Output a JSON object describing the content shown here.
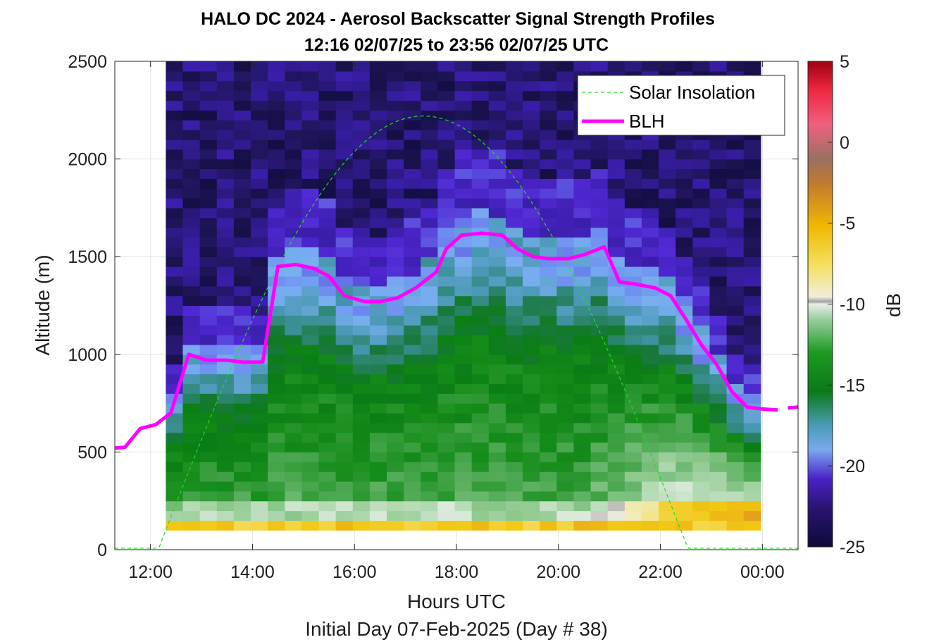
{
  "chart_data": {
    "type": "heatmap",
    "title": "HALO DC 2024 - Aerosol Backscatter Signal Strength Profiles",
    "subtitle": "12:16 02/07/25 to 23:56 02/07/25  UTC",
    "xlabel": "Hours UTC",
    "xlabel2": "Initial Day 07-Feb-2025 (Day # 38)",
    "ylabel": "Altitude (m)",
    "colorbar_label": "dB",
    "xlim_hours": [
      11.3,
      24.7
    ],
    "ylim": [
      0,
      2500
    ],
    "x_ticks": [
      {
        "value": 12,
        "label": "12:00"
      },
      {
        "value": 14,
        "label": "14:00"
      },
      {
        "value": 16,
        "label": "16:00"
      },
      {
        "value": 18,
        "label": "18:00"
      },
      {
        "value": 20,
        "label": "20:00"
      },
      {
        "value": 22,
        "label": "22:00"
      },
      {
        "value": 24,
        "label": "00:00"
      }
    ],
    "y_ticks": [
      {
        "value": 0,
        "label": "0"
      },
      {
        "value": 500,
        "label": "500"
      },
      {
        "value": 1000,
        "label": "1000"
      },
      {
        "value": 1500,
        "label": "1500"
      },
      {
        "value": 2000,
        "label": "2000"
      },
      {
        "value": 2500,
        "label": "2500"
      }
    ],
    "colorbar_ticks": [
      {
        "value": 5,
        "label": "5"
      },
      {
        "value": 0,
        "label": "0"
      },
      {
        "value": -5,
        "label": "-5"
      },
      {
        "value": -10,
        "label": "-10"
      },
      {
        "value": -15,
        "label": "-15"
      },
      {
        "value": -20,
        "label": "-20"
      },
      {
        "value": -25,
        "label": "-25"
      }
    ],
    "clim": [
      -25,
      5
    ],
    "grid": true,
    "legend_position": "top-right",
    "legend": [
      {
        "name": "Solar Insolation",
        "style": "dashed",
        "color": "#22dd22"
      },
      {
        "name": "BLH",
        "style": "solid",
        "color": "#ff00ff"
      }
    ],
    "heatmap": {
      "x_start_hours": 12.3,
      "x_step_hours": 0.3333,
      "y_start_m": 100,
      "y_step_m": 50,
      "profile_columns": 35,
      "level_boundaries_dB": {
        "near_surface_bottom": -7,
        "boundary_layer_low": -13,
        "boundary_layer_mid": -16.5,
        "entrainment_zone": -20,
        "free_troposphere": -23.5
      },
      "description_key": "values estimated per profile column from BLH"
    },
    "series": [
      {
        "name": "BLH",
        "x_hours": [
          11.3,
          11.5,
          11.8,
          12.1,
          12.4,
          12.75,
          13.1,
          13.5,
          13.8,
          14.2,
          14.5,
          14.85,
          15.2,
          15.5,
          15.8,
          16.2,
          16.5,
          16.85,
          17.2,
          17.6,
          17.8,
          18.1,
          18.5,
          18.9,
          19.2,
          19.5,
          19.8,
          20.2,
          20.5,
          20.9,
          21.2,
          21.5,
          21.9,
          22.2,
          22.5,
          22.8,
          23.1,
          23.4,
          23.7,
          24.0,
          24.3
        ],
        "values": [
          520,
          525,
          620,
          640,
          700,
          1000,
          970,
          970,
          960,
          960,
          1450,
          1460,
          1440,
          1400,
          1300,
          1270,
          1270,
          1290,
          1340,
          1420,
          1540,
          1610,
          1620,
          1610,
          1540,
          1500,
          1490,
          1490,
          1510,
          1550,
          1370,
          1360,
          1340,
          1300,
          1180,
          1050,
          950,
          810,
          730,
          720,
          715
        ],
        "extra_x_hours": [
          24.5,
          24.7
        ],
        "extra_values": [
          725,
          730
        ]
      },
      {
        "name": "Solar Insolation",
        "sunrise_hours": 12.15,
        "sunset_hours": 22.55,
        "peak_hours": 17.3,
        "peak_value": 2220,
        "baseline": 0
      }
    ]
  },
  "colors": {
    "blh": "#ff00ff",
    "solar": "#22dd22",
    "axis": "#262626",
    "grid": "#dfdfdf"
  }
}
